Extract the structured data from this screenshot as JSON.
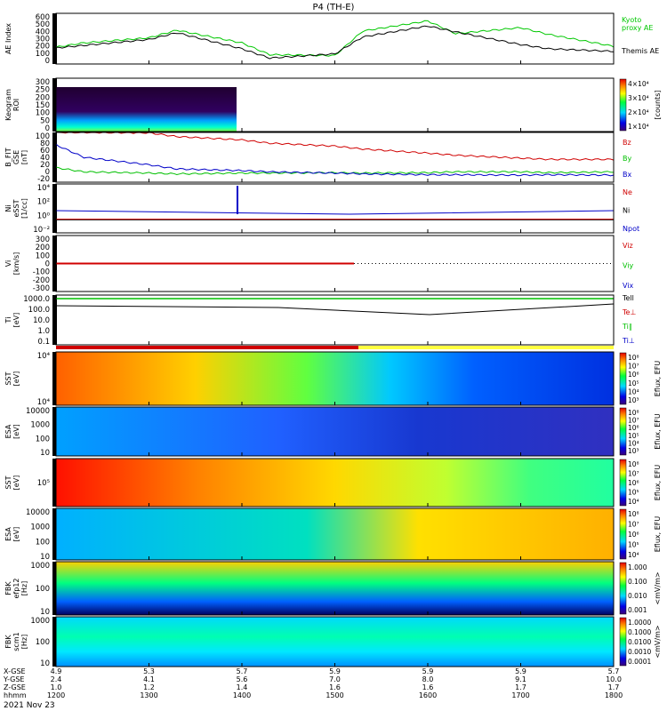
{
  "title": "P4 (TH-E)",
  "date": "2021 Nov 23",
  "colors": {
    "kyoto": "#00c800",
    "themis": "#000000",
    "red": "#d00000",
    "green": "#00c000",
    "blue": "#0000c8"
  },
  "chart_data": [
    {
      "type": "line",
      "panel": "ae",
      "ylabel": "AE Index",
      "yticks": [
        "600",
        "500",
        "400",
        "300",
        "200",
        "100",
        "0"
      ],
      "ylim": [
        0,
        600
      ],
      "x": [
        1200,
        1230,
        1300,
        1330,
        1400,
        1430,
        1500,
        1530,
        1600,
        1630,
        1700,
        1730,
        1800
      ],
      "series": [
        {
          "name": "Kyoto proxy AE",
          "label1": "Kyoto",
          "label2": "proxy AE",
          "color": "#00c800",
          "values": [
            200,
            250,
            310,
            400,
            250,
            110,
            100,
            390,
            510,
            360,
            430,
            350,
            210
          ]
        },
        {
          "name": "Themis AE",
          "color": "#000000",
          "values": [
            190,
            220,
            290,
            370,
            180,
            70,
            120,
            320,
            450,
            380,
            230,
            180,
            150
          ]
        }
      ]
    },
    {
      "type": "heatmap",
      "panel": "roi",
      "ylabel": "Keogram",
      "ylabel2": "ROI",
      "yticks": [
        "300",
        "250",
        "200",
        "150",
        "100",
        "50",
        "0"
      ],
      "cbar_ticks": [
        "4×10⁴",
        "3×10⁴",
        "2×10⁴",
        "1×10⁴"
      ],
      "cbar_label": "[counts]"
    },
    {
      "type": "line",
      "panel": "bfield",
      "ylabel": "B_FIT",
      "ylabel2": "GSE",
      "ylabel3": "[nT]",
      "yticks": [
        "100",
        "80",
        "60",
        "40",
        "20",
        "0",
        "-20"
      ],
      "ylim": [
        -20,
        100
      ],
      "x": [
        1200,
        1230,
        1300,
        1330,
        1400,
        1430,
        1500,
        1530,
        1600,
        1630,
        1700,
        1730,
        1800
      ],
      "series": [
        {
          "name": "Bz",
          "color": "#d00000",
          "values": [
            100,
            100,
            99,
            90,
            82,
            74,
            67,
            60,
            50,
            45,
            38,
            35,
            35
          ]
        },
        {
          "name": "By",
          "color": "#00c000",
          "values": [
            15,
            5,
            2,
            0,
            2,
            2,
            3,
            2,
            3,
            5,
            5,
            3,
            5
          ]
        },
        {
          "name": "Bx",
          "color": "#0000c8",
          "values": [
            70,
            40,
            22,
            12,
            8,
            5,
            2,
            0,
            -2,
            -2,
            -3,
            -2,
            -3
          ]
        }
      ]
    },
    {
      "type": "line",
      "panel": "density",
      "ylabel": "Ni",
      "ylabel2": "eSST",
      "ylabel3": "[1/cc]",
      "yticks": [
        "10⁴",
        "10²",
        "10⁰",
        "10⁻²"
      ],
      "legend": [
        {
          "name": "Ne",
          "color": "#d00000"
        },
        {
          "name": "Ni",
          "color": "#000000"
        },
        {
          "name": "Npot",
          "color": "#0000c8"
        }
      ]
    },
    {
      "type": "line",
      "panel": "velocity",
      "ylabel": "Vi",
      "ylabel2": "[km/s]",
      "yticks": [
        "300",
        "200",
        "100",
        "0",
        "-100",
        "-200",
        "-300"
      ],
      "ylim": [
        -350,
        350
      ],
      "legend": [
        {
          "name": "Viz",
          "color": "#d00000"
        },
        {
          "name": "Viy",
          "color": "#00c000"
        },
        {
          "name": "Vix",
          "color": "#0000c8"
        }
      ]
    },
    {
      "type": "line",
      "panel": "temperature",
      "ylabel": "Ti",
      "ylabel2": "[eV]",
      "yticks": [
        "1000.0",
        "100.0",
        "10.0",
        "1.0",
        "0.1"
      ],
      "legend": [
        {
          "name": "Tell",
          "color": "#000000"
        },
        {
          "name": "Te⊥",
          "color": "#d00000"
        },
        {
          "name": "Ti∥",
          "color": "#00c000"
        },
        {
          "name": "Ti⊥",
          "color": "#0000c8"
        }
      ]
    },
    {
      "type": "heatmap",
      "panel": "sst-e",
      "ylabel": "SST",
      "ylabel2": "[eV]",
      "yticks": [
        "10⁴",
        "10⁴"
      ],
      "cbar_ticks": [
        "10⁸",
        "10⁷",
        "10⁶",
        "10⁵",
        "10⁴",
        "10³"
      ],
      "cbar_label": "Eflux, EFU"
    },
    {
      "type": "heatmap",
      "panel": "esa-e",
      "ylabel": "ESA",
      "ylabel2": "[eV]",
      "yticks": [
        "10000",
        "1000",
        "100",
        "10"
      ],
      "cbar_ticks": [
        "10⁸",
        "10⁷",
        "10⁶",
        "10⁵",
        "10⁴",
        "10³"
      ],
      "cbar_label": "Eflux, EFU"
    },
    {
      "type": "heatmap",
      "panel": "sst-i",
      "ylabel": "SST",
      "ylabel2": "[eV]",
      "yticks": [
        "10⁵"
      ],
      "cbar_ticks": [
        "10⁸",
        "10⁷",
        "10⁶",
        "10⁵",
        "10⁴"
      ],
      "cbar_label": "Eflux, EFU"
    },
    {
      "type": "heatmap",
      "panel": "esa-i",
      "ylabel": "ESA",
      "ylabel2": "[eV]",
      "yticks": [
        "10000",
        "1000",
        "100",
        "10"
      ],
      "cbar_ticks": [
        "10⁸",
        "10⁷",
        "10⁶",
        "10⁵",
        "10⁴"
      ],
      "cbar_label": "Eflux, EFU"
    },
    {
      "type": "heatmap",
      "panel": "fbk-e",
      "ylabel": "FBK",
      "ylabel2": "efp12",
      "ylabel3": "[Hz]",
      "yticks": [
        "1000",
        "100",
        "10"
      ],
      "cbar_ticks": [
        "1.000",
        "0.100",
        "0.010",
        "0.001"
      ],
      "cbar_label": "<mV/m>"
    },
    {
      "type": "heatmap",
      "panel": "fbk-b",
      "ylabel": "FBK",
      "ylabel2": "scm1",
      "ylabel3": "[Hz]",
      "yticks": [
        "1000",
        "100",
        "10"
      ],
      "cbar_ticks": [
        "1.0000",
        "0.1000",
        "0.0100",
        "0.0010",
        "0.0001"
      ],
      "cbar_label": "<mV/m>"
    }
  ],
  "xaxis": {
    "rows": [
      {
        "label": "X-GSE",
        "values": [
          "4.9",
          "5.3",
          "5.7",
          "5.9",
          "5.9",
          "5.9",
          "5.7"
        ]
      },
      {
        "label": "Y-GSE",
        "values": [
          "2.4",
          "4.1",
          "5.6",
          "7.0",
          "8.0",
          "9.1",
          "10.0"
        ]
      },
      {
        "label": "Z-GSE",
        "values": [
          "1.0",
          "1.2",
          "1.4",
          "1.6",
          "1.6",
          "1.7",
          "1.7"
        ]
      },
      {
        "label": "hhmm",
        "values": [
          "1200",
          "1300",
          "1400",
          "1500",
          "1600",
          "1700",
          "1800"
        ]
      }
    ]
  }
}
